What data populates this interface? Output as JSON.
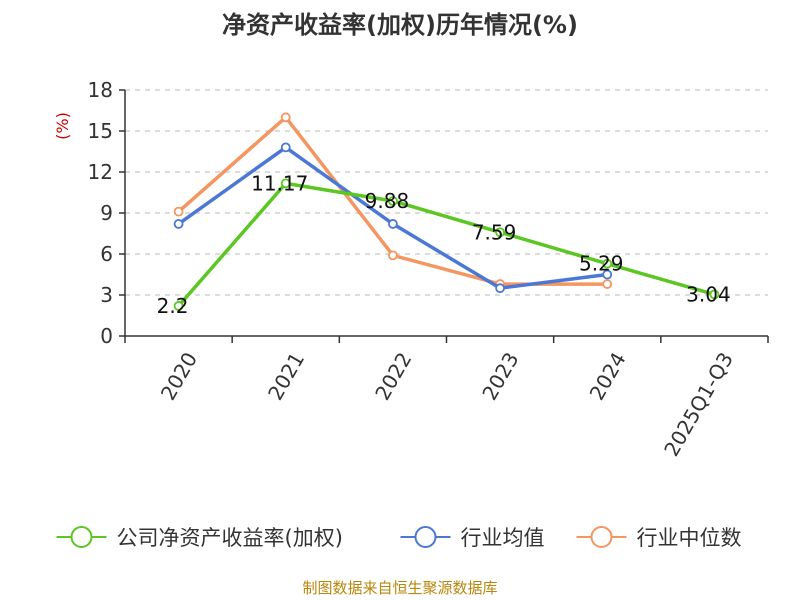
{
  "chart_data": {
    "type": "line",
    "title": "净资产收益率(加权)历年情况(%)",
    "ylabel": "(%)",
    "xlabel": "",
    "categories": [
      "2020",
      "2021",
      "2022",
      "2023",
      "2024",
      "2025Q1-Q3"
    ],
    "ylim": [
      0,
      18
    ],
    "yticks": [
      0,
      3,
      6,
      9,
      12,
      15,
      18
    ],
    "grid": true,
    "legend_position": "bottom",
    "series": [
      {
        "name": "公司净资产收益率(加权)",
        "color": "#5cc623",
        "values": [
          2.2,
          11.17,
          9.88,
          7.59,
          5.29,
          3.04
        ],
        "labels": [
          "2.2",
          "11.17",
          "9.88",
          "7.59",
          "5.29",
          "3.04"
        ]
      },
      {
        "name": "行业均值",
        "color": "#4a78d4",
        "values": [
          8.2,
          13.8,
          8.2,
          3.5,
          4.5,
          null
        ]
      },
      {
        "name": "行业中位数",
        "color": "#f59560",
        "values": [
          9.1,
          16.0,
          5.9,
          3.8,
          3.8,
          null
        ]
      }
    ],
    "source": "制图数据来自恒生聚源数据库"
  }
}
